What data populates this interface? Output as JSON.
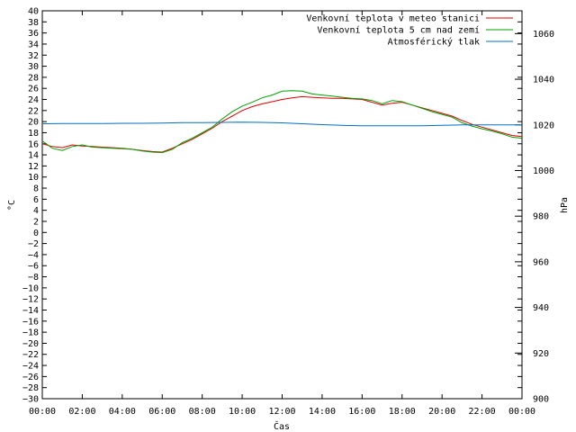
{
  "chart_data": {
    "type": "line",
    "title": "",
    "xlabel": "Čas",
    "ylabel": "°C",
    "y2label": "hPa",
    "grid": false,
    "legend_position": "top-right",
    "x_ticks": [
      "00:00",
      "02:00",
      "04:00",
      "06:00",
      "08:00",
      "10:00",
      "12:00",
      "14:00",
      "16:00",
      "18:00",
      "20:00",
      "22:00",
      "00:00"
    ],
    "x_range_hours": [
      0,
      24
    ],
    "y_ticks": [
      -30,
      -28,
      -26,
      -24,
      -22,
      -20,
      -18,
      -16,
      -14,
      -12,
      -10,
      -8,
      -6,
      -4,
      -2,
      0,
      2,
      4,
      6,
      8,
      10,
      12,
      14,
      16,
      18,
      20,
      22,
      24,
      26,
      28,
      30,
      32,
      34,
      36,
      38,
      40
    ],
    "y_tick_labels": [
      "−30",
      "−28",
      "−26",
      "−24",
      "−22",
      "−20",
      "−18",
      "−16",
      "−14",
      "−12",
      "−10",
      "−8",
      "−6",
      "−4",
      "−2",
      "0",
      "2",
      "4",
      "6",
      "8",
      "10",
      "12",
      "14",
      "16",
      "18",
      "20",
      "22",
      "24",
      "26",
      "28",
      "30",
      "32",
      "34",
      "36",
      "38",
      "40"
    ],
    "ylim": [
      -30,
      40
    ],
    "y2_ticks": [
      900,
      920,
      940,
      960,
      980,
      1000,
      1020,
      1040,
      1060
    ],
    "y2lim": [
      900,
      1070
    ],
    "series": [
      {
        "name": "Venkovní teplota v meteo stanici",
        "color": "#e00000",
        "axis": "left",
        "x": [
          0,
          0.5,
          1,
          1.5,
          2,
          2.5,
          3,
          3.5,
          4,
          4.5,
          5,
          5.5,
          6,
          6.5,
          7,
          7.5,
          8,
          8.5,
          9,
          9.5,
          10,
          10.5,
          11,
          11.5,
          12,
          12.5,
          13,
          13.5,
          14,
          14.5,
          15,
          15.5,
          16,
          16.5,
          17,
          17.5,
          18,
          18.5,
          19,
          19.5,
          20,
          20.5,
          21,
          21.5,
          22,
          22.5,
          23,
          23.5,
          24
        ],
        "values": [
          16.0,
          15.5,
          15.3,
          15.8,
          15.6,
          15.5,
          15.4,
          15.3,
          15.2,
          15.0,
          14.8,
          14.6,
          14.5,
          15.2,
          16.0,
          16.8,
          17.8,
          18.8,
          20.0,
          21.0,
          22.0,
          22.7,
          23.2,
          23.6,
          24.0,
          24.3,
          24.5,
          24.4,
          24.3,
          24.2,
          24.2,
          24.1,
          24.0,
          23.5,
          23.0,
          23.3,
          23.5,
          23.0,
          22.5,
          22.0,
          21.5,
          21.0,
          20.2,
          19.5,
          19.0,
          18.5,
          18.0,
          17.5,
          17.3
        ]
      },
      {
        "name": "Venkovní teplota 5 cm nad zemí",
        "color": "#00a000",
        "axis": "left",
        "x": [
          0,
          0.5,
          1,
          1.5,
          2,
          2.5,
          3,
          3.5,
          4,
          4.5,
          5,
          5.5,
          6,
          6.5,
          7,
          7.5,
          8,
          8.5,
          9,
          9.5,
          10,
          10.5,
          11,
          11.5,
          12,
          12.5,
          13,
          13.5,
          14,
          14.5,
          15,
          15.5,
          16,
          16.5,
          17,
          17.5,
          18,
          18.5,
          19,
          19.5,
          20,
          20.5,
          21,
          21.5,
          22,
          22.5,
          23,
          23.5,
          24
        ],
        "values": [
          16.5,
          15.2,
          14.8,
          15.5,
          15.8,
          15.4,
          15.3,
          15.2,
          15.1,
          15.0,
          14.7,
          14.5,
          14.4,
          15.0,
          16.2,
          17.0,
          18.0,
          19.0,
          20.5,
          21.8,
          22.8,
          23.5,
          24.3,
          24.8,
          25.5,
          25.6,
          25.5,
          25.0,
          24.8,
          24.6,
          24.4,
          24.2,
          24.1,
          23.8,
          23.2,
          23.8,
          23.6,
          23.0,
          22.4,
          21.8,
          21.3,
          20.8,
          19.8,
          19.2,
          18.7,
          18.3,
          17.8,
          17.2,
          17.0
        ]
      },
      {
        "name": "Atmosférický tlak",
        "color": "#0070c0",
        "axis": "right",
        "x": [
          0,
          1,
          2,
          3,
          4,
          5,
          6,
          7,
          8,
          9,
          10,
          11,
          12,
          13,
          14,
          15,
          16,
          17,
          18,
          19,
          20,
          21,
          22,
          23,
          24
        ],
        "values": [
          1020.5,
          1020.6,
          1020.6,
          1020.6,
          1020.7,
          1020.7,
          1020.8,
          1021.0,
          1021.0,
          1021.1,
          1021.2,
          1021.1,
          1020.9,
          1020.5,
          1020.1,
          1019.8,
          1019.6,
          1019.6,
          1019.6,
          1019.6,
          1019.8,
          1020.0,
          1020.0,
          1020.0,
          1020.0
        ]
      }
    ]
  }
}
